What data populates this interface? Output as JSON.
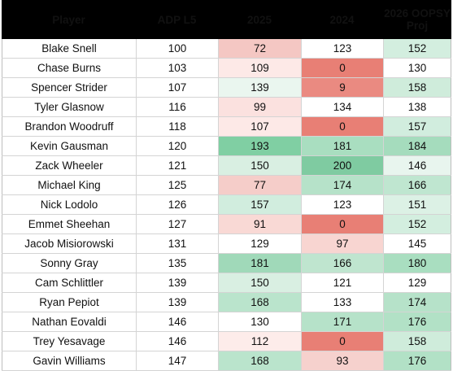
{
  "table": {
    "headers": [
      "Player",
      "ADP L5",
      "2025",
      "2024",
      "2026 OOPSY\nProj"
    ],
    "rows": [
      {
        "cells": [
          "Blake Snell",
          "100",
          "72",
          "123",
          "152"
        ],
        "bg": [
          "#ffffff",
          "#ffffff",
          "#f4c7c3",
          "#ffffff",
          "#d3eedf"
        ]
      },
      {
        "cells": [
          "Chase Burns",
          "103",
          "109",
          "0",
          "130"
        ],
        "bg": [
          "#ffffff",
          "#ffffff",
          "#fde9e7",
          "#e87f75",
          "#ffffff"
        ]
      },
      {
        "cells": [
          "Spencer Strider",
          "107",
          "139",
          "9",
          "158"
        ],
        "bg": [
          "#ffffff",
          "#ffffff",
          "#eaf6ef",
          "#ea8a81",
          "#cfecdb"
        ]
      },
      {
        "cells": [
          "Tyler Glasnow",
          "116",
          "99",
          "134",
          "138"
        ],
        "bg": [
          "#ffffff",
          "#ffffff",
          "#fbe1df",
          "#ffffff",
          "#ffffff"
        ]
      },
      {
        "cells": [
          "Brandon Woodruff",
          "118",
          "107",
          "0",
          "157"
        ],
        "bg": [
          "#ffffff",
          "#ffffff",
          "#fde9e7",
          "#e87f75",
          "#d1edde"
        ]
      },
      {
        "cells": [
          "Kevin Gausman",
          "120",
          "193",
          "181",
          "184"
        ],
        "bg": [
          "#ffffff",
          "#ffffff",
          "#80cfa3",
          "#a9dec0",
          "#a5dcbd"
        ]
      },
      {
        "cells": [
          "Zack Wheeler",
          "121",
          "150",
          "200",
          "146"
        ],
        "bg": [
          "#ffffff",
          "#ffffff",
          "#d9efe2",
          "#7fcba1",
          "#e8f5ee"
        ]
      },
      {
        "cells": [
          "Michael King",
          "125",
          "77",
          "174",
          "166"
        ],
        "bg": [
          "#ffffff",
          "#ffffff",
          "#f5cdc9",
          "#b6e2c9",
          "#bfe6d0"
        ]
      },
      {
        "cells": [
          "Nick Lodolo",
          "126",
          "157",
          "123",
          "151"
        ],
        "bg": [
          "#ffffff",
          "#ffffff",
          "#d1edde",
          "#ffffff",
          "#dcf1e5"
        ]
      },
      {
        "cells": [
          "Emmet Sheehan",
          "127",
          "91",
          "0",
          "152"
        ],
        "bg": [
          "#ffffff",
          "#ffffff",
          "#f9d9d5",
          "#e87f75",
          "#d3eedf"
        ]
      },
      {
        "cells": [
          "Jacob Misiorowski",
          "131",
          "129",
          "97",
          "145"
        ],
        "bg": [
          "#ffffff",
          "#ffffff",
          "#ffffff",
          "#f8d5d1",
          "#ffffff"
        ]
      },
      {
        "cells": [
          "Sonny Gray",
          "135",
          "181",
          "166",
          "180"
        ],
        "bg": [
          "#ffffff",
          "#ffffff",
          "#a0d9b9",
          "#bfe5cf",
          "#a9dec0"
        ]
      },
      {
        "cells": [
          "Cam Schlittler",
          "139",
          "150",
          "121",
          "129"
        ],
        "bg": [
          "#ffffff",
          "#ffffff",
          "#d9efe2",
          "#ffffff",
          "#ffffff"
        ]
      },
      {
        "cells": [
          "Ryan Pepiot",
          "139",
          "168",
          "133",
          "174"
        ],
        "bg": [
          "#ffffff",
          "#ffffff",
          "#bae4cc",
          "#ffffff",
          "#b6e2c9"
        ]
      },
      {
        "cells": [
          "Nathan Eovaldi",
          "146",
          "130",
          "171",
          "176"
        ],
        "bg": [
          "#ffffff",
          "#ffffff",
          "#ffffff",
          "#b6e2c9",
          "#b2e1c6"
        ]
      },
      {
        "cells": [
          "Trey Yesavage",
          "146",
          "112",
          "0",
          "158"
        ],
        "bg": [
          "#ffffff",
          "#ffffff",
          "#fdecea",
          "#e87f75",
          "#cfecdb"
        ]
      },
      {
        "cells": [
          "Gavin Williams",
          "147",
          "168",
          "93",
          "176"
        ],
        "bg": [
          "#ffffff",
          "#ffffff",
          "#bae4cc",
          "#f6d1cd",
          "#b2e1c6"
        ]
      }
    ]
  }
}
